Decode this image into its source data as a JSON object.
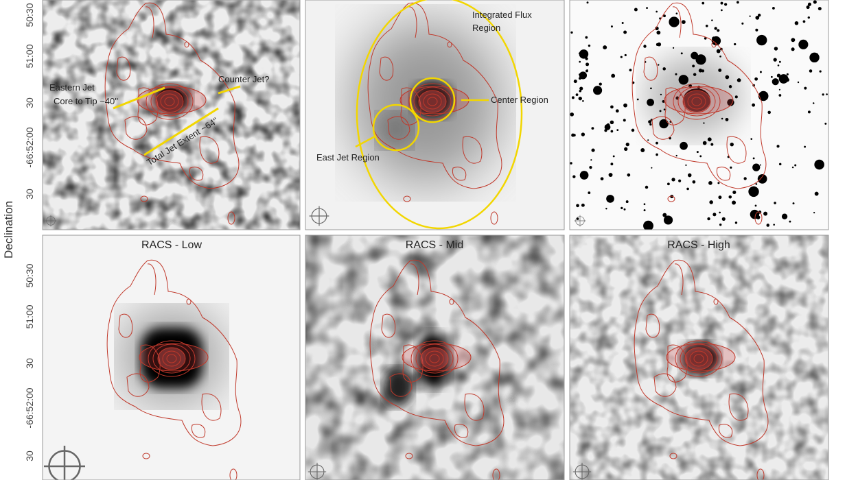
{
  "figure": {
    "y_axis_label": "Declination",
    "rows": [
      {
        "ytick_labels": [
          "50:30",
          "51:00",
          "30",
          "-66:52:00",
          "30"
        ]
      },
      {
        "ytick_labels": [
          "50:30",
          "51:00",
          "30",
          "-66:52:00",
          "30"
        ]
      }
    ],
    "top_panels": [
      {
        "annotations": [
          "Eastern Jet",
          "Core to Tip ~40''",
          "Counter Jet?",
          "Total Jet Extent ~64''"
        ]
      },
      {
        "annotations": [
          "Integrated Flux Region",
          "Center Region",
          "East Jet Region"
        ]
      }
    ],
    "bottom_panels": [
      {
        "title": "RACS - Low"
      },
      {
        "title": "RACS - Mid"
      },
      {
        "title": "RACS - High"
      }
    ]
  }
}
